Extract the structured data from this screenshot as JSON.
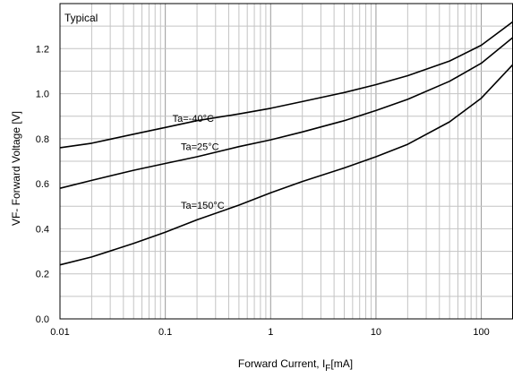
{
  "chart_data": {
    "type": "line",
    "title": "",
    "corner_label": "Typical",
    "xlabel": "Forward Current, I",
    "xlabel_sub": "F",
    "xlabel_unit": "[mA]",
    "ylabel": "VF- Forward Voltage [V]",
    "x_scale": "log",
    "xlim": [
      0.01,
      200
    ],
    "ylim": [
      0.0,
      1.4
    ],
    "x_ticks": [
      {
        "value": 0.01,
        "label": "0.01"
      },
      {
        "value": 0.1,
        "label": "0.1"
      },
      {
        "value": 1,
        "label": "1"
      },
      {
        "value": 10,
        "label": "10"
      },
      {
        "value": 100,
        "label": "100"
      }
    ],
    "y_ticks": [
      {
        "value": 0.0,
        "label": "0.0"
      },
      {
        "value": 0.2,
        "label": "0.2"
      },
      {
        "value": 0.4,
        "label": "0.4"
      },
      {
        "value": 0.6,
        "label": "0.6"
      },
      {
        "value": 0.8,
        "label": "0.8"
      },
      {
        "value": 1.0,
        "label": "1.0"
      },
      {
        "value": 1.2,
        "label": "1.2"
      }
    ],
    "grid": true,
    "series": [
      {
        "name": "Ta=-40°C",
        "label_at": [
          0.1,
          0.89
        ],
        "x": [
          0.01,
          0.02,
          0.05,
          0.1,
          0.2,
          0.5,
          1,
          2,
          5,
          10,
          20,
          50,
          100,
          200
        ],
        "y": [
          0.76,
          0.78,
          0.82,
          0.85,
          0.88,
          0.91,
          0.935,
          0.965,
          1.005,
          1.04,
          1.08,
          1.145,
          1.215,
          1.32
        ]
      },
      {
        "name": "Ta=25°C",
        "label_at": [
          0.12,
          0.765
        ],
        "x": [
          0.01,
          0.02,
          0.05,
          0.1,
          0.2,
          0.5,
          1,
          2,
          5,
          10,
          20,
          50,
          100,
          200
        ],
        "y": [
          0.58,
          0.615,
          0.66,
          0.69,
          0.72,
          0.765,
          0.795,
          0.83,
          0.88,
          0.925,
          0.975,
          1.055,
          1.135,
          1.25
        ]
      },
      {
        "name": "Ta=150°C",
        "label_at": [
          0.12,
          0.505
        ],
        "x": [
          0.01,
          0.02,
          0.05,
          0.1,
          0.2,
          0.5,
          1,
          2,
          5,
          10,
          20,
          50,
          100,
          200
        ],
        "y": [
          0.24,
          0.275,
          0.335,
          0.385,
          0.44,
          0.505,
          0.56,
          0.61,
          0.67,
          0.72,
          0.775,
          0.875,
          0.98,
          1.13
        ]
      }
    ]
  }
}
